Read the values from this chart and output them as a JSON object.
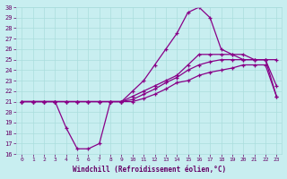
{
  "xlabel": "Windchill (Refroidissement éolien,°C)",
  "bg_color": "#c8eef0",
  "line_color": "#880088",
  "xlim_min": -0.5,
  "xlim_max": 23.5,
  "ylim_min": 16,
  "ylim_max": 30,
  "xticks": [
    0,
    1,
    2,
    3,
    4,
    5,
    6,
    7,
    8,
    9,
    10,
    11,
    12,
    13,
    14,
    15,
    16,
    17,
    18,
    19,
    20,
    21,
    22,
    23
  ],
  "yticks": [
    16,
    17,
    18,
    19,
    20,
    21,
    22,
    23,
    24,
    25,
    26,
    27,
    28,
    29,
    30
  ],
  "line1_x": [
    0,
    1,
    2,
    3,
    4,
    5,
    6,
    7,
    8,
    9,
    10,
    11,
    12,
    13,
    14,
    15,
    16,
    17,
    18,
    19,
    20,
    21,
    22,
    23
  ],
  "line1_y": [
    21,
    21,
    21,
    21,
    18.5,
    16.5,
    16.5,
    17.0,
    21.0,
    21,
    22,
    23,
    24.5,
    26,
    27.5,
    29.5,
    30,
    29,
    26,
    25.5,
    25,
    25,
    25,
    22.5
  ],
  "line2_x": [
    0,
    1,
    2,
    3,
    4,
    5,
    6,
    7,
    8,
    9,
    10,
    11,
    12,
    13,
    14,
    15,
    16,
    17,
    18,
    19,
    20,
    21,
    22,
    23
  ],
  "line2_y": [
    21,
    21,
    21,
    21,
    21,
    21,
    21,
    21,
    21,
    21,
    21.5,
    22,
    22.5,
    23,
    23.5,
    24.5,
    25.5,
    25.5,
    25.5,
    25.5,
    25.5,
    25.0,
    25.0,
    21.5
  ],
  "line3_x": [
    0,
    1,
    2,
    3,
    4,
    5,
    6,
    7,
    8,
    9,
    10,
    11,
    12,
    13,
    14,
    15,
    16,
    17,
    18,
    19,
    20,
    21,
    22,
    23
  ],
  "line3_y": [
    21,
    21,
    21,
    21,
    21,
    21,
    21,
    21,
    21,
    21,
    21.2,
    21.7,
    22.2,
    22.8,
    23.3,
    24.0,
    24.5,
    24.8,
    25.0,
    25.0,
    25.0,
    25.0,
    25.0,
    25.0
  ],
  "line4_x": [
    0,
    1,
    2,
    3,
    4,
    5,
    6,
    7,
    8,
    9,
    10,
    11,
    12,
    13,
    14,
    15,
    16,
    17,
    18,
    19,
    20,
    21,
    22,
    23
  ],
  "line4_y": [
    21,
    21,
    21,
    21,
    21,
    21,
    21,
    21,
    21,
    21,
    21.0,
    21.3,
    21.7,
    22.2,
    22.8,
    23.0,
    23.5,
    23.8,
    24.0,
    24.2,
    24.5,
    24.5,
    24.5,
    21.5
  ],
  "grid_color": "#aadddd",
  "font_color": "#660066",
  "font_name": "monospace"
}
